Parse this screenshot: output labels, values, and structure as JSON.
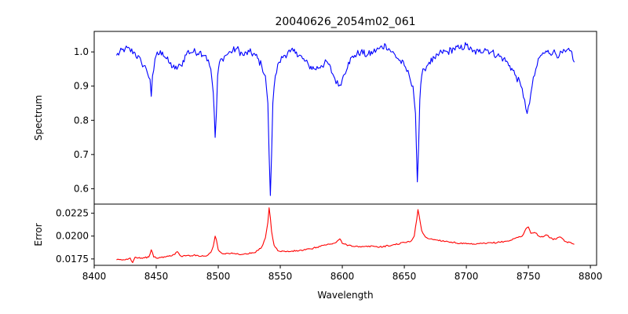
{
  "chart_data": {
    "type": "line",
    "title": "20040626_2054m02_061",
    "xlabel": "Wavelength",
    "xlim": [
      8400,
      8805
    ],
    "x_ticks": [
      "8400",
      "8450",
      "8500",
      "8550",
      "8600",
      "8650",
      "8700",
      "8750",
      "8800"
    ],
    "x_tick_values": [
      8400,
      8450,
      8500,
      8550,
      8600,
      8650,
      8700,
      8750,
      8800
    ],
    "grid": false,
    "panels": [
      {
        "ylabel": "Spectrum",
        "ylim": [
          0.555,
          1.06
        ],
        "y_ticks": [
          "0.6",
          "0.7",
          "0.8",
          "0.9",
          "1.0"
        ],
        "y_tick_values": [
          0.6,
          0.7,
          0.8,
          0.9,
          1.0
        ],
        "series": [
          {
            "color": "#0000ff",
            "x": [
              8418,
              8425,
              8432,
              8438,
              8442,
              8445,
              8446,
              8447,
              8450,
              8455,
              8460,
              8465,
              8470,
              8475,
              8480,
              8485,
              8490,
              8494,
              8496,
              8497.5,
              8498.5,
              8499.5,
              8501,
              8503,
              8506,
              8510,
              8515,
              8520,
              8525,
              8530,
              8535,
              8538,
              8540,
              8541,
              8542,
              8543,
              8544,
              8546,
              8549,
              8553,
              8558,
              8563,
              8568,
              8573,
              8578,
              8583,
              8588,
              8593,
              8597,
              8600,
              8605,
              8610,
              8615,
              8620,
              8625,
              8630,
              8635,
              8640,
              8645,
              8650,
              8654,
              8657,
              8659,
              8660.5,
              8661.5,
              8662.5,
              8664,
              8666,
              8670,
              8675,
              8680,
              8685,
              8690,
              8695,
              8700,
              8705,
              8710,
              8715,
              8720,
              8725,
              8730,
              8735,
              8740,
              8744,
              8747,
              8749,
              8750,
              8751,
              8753,
              8756,
              8760,
              8765,
              8770,
              8775,
              8780,
              8785,
              8787
            ],
            "y": [
              0.99,
              1.01,
              1.0,
              0.97,
              0.95,
              0.92,
              0.87,
              0.93,
              0.99,
              1.0,
              0.97,
              0.95,
              0.96,
              1.0,
              1.0,
              1.0,
              0.99,
              0.95,
              0.88,
              0.75,
              0.82,
              0.93,
              0.97,
              0.98,
              0.99,
              1.0,
              1.01,
              0.99,
              1.0,
              0.99,
              0.96,
              0.93,
              0.85,
              0.7,
              0.58,
              0.7,
              0.85,
              0.93,
              0.97,
              0.99,
              1.0,
              1.0,
              0.98,
              0.96,
              0.95,
              0.96,
              0.97,
              0.93,
              0.9,
              0.92,
              0.97,
              0.99,
              1.0,
              0.99,
              1.0,
              1.01,
              1.02,
              1.0,
              0.98,
              0.96,
              0.93,
              0.9,
              0.82,
              0.62,
              0.72,
              0.86,
              0.93,
              0.95,
              0.97,
              0.98,
              1.0,
              1.0,
              1.01,
              1.01,
              1.02,
              1.0,
              1.0,
              1.01,
              1.0,
              0.99,
              0.98,
              0.96,
              0.93,
              0.9,
              0.86,
              0.82,
              0.84,
              0.85,
              0.9,
              0.95,
              0.99,
              1.0,
              1.0,
              0.99,
              1.0,
              1.0,
              0.97
            ]
          }
        ]
      },
      {
        "ylabel": "Error",
        "ylim": [
          0.0168,
          0.0235
        ],
        "y_ticks": [
          "0.0175",
          "0.0200",
          "0.0225"
        ],
        "y_tick_values": [
          0.0175,
          0.02,
          0.0225
        ],
        "series": [
          {
            "color": "#ff0000",
            "x": [
              8418,
              8425,
              8429,
              8431,
              8433,
              8438,
              8444,
              8446,
              8448,
              8452,
              8460,
              8465,
              8467,
              8470,
              8480,
              8490,
              8494,
              8496,
              8497.5,
              8498.5,
              8500,
              8503,
              8510,
              8520,
              8530,
              8535,
              8538,
              8540,
              8541,
              8542,
              8543,
              8545,
              8548,
              8555,
              8565,
              8575,
              8585,
              8590,
              8595,
              8598,
              8600,
              8605,
              8615,
              8625,
              8630,
              8640,
              8650,
              8655,
              8658,
              8660,
              8661,
              8662,
              8664,
              8667,
              8670,
              8675,
              8685,
              8695,
              8705,
              8715,
              8725,
              8735,
              8740,
              8745,
              8748,
              8750,
              8752,
              8755,
              8760,
              8765,
              8770,
              8775,
              8780,
              8785,
              8787
            ],
            "y": [
              0.0174,
              0.0174,
              0.0176,
              0.0171,
              0.0177,
              0.0176,
              0.0177,
              0.0185,
              0.0177,
              0.0176,
              0.0178,
              0.018,
              0.0183,
              0.0178,
              0.0179,
              0.0178,
              0.0182,
              0.0189,
              0.02,
              0.0196,
              0.0185,
              0.0181,
              0.0181,
              0.018,
              0.0182,
              0.0188,
              0.0198,
              0.0215,
              0.0231,
              0.022,
              0.0205,
              0.019,
              0.0184,
              0.0183,
              0.0184,
              0.0186,
              0.019,
              0.0191,
              0.0193,
              0.0197,
              0.0192,
              0.019,
              0.0188,
              0.0189,
              0.0188,
              0.019,
              0.0193,
              0.0194,
              0.02,
              0.0218,
              0.0229,
              0.0222,
              0.0206,
              0.0199,
              0.0197,
              0.0196,
              0.0194,
              0.0192,
              0.0191,
              0.0192,
              0.0193,
              0.0195,
              0.0198,
              0.02,
              0.0208,
              0.021,
              0.0203,
              0.0204,
              0.0199,
              0.0201,
              0.0196,
              0.0199,
              0.0194,
              0.0192,
              0.0191
            ]
          }
        ]
      }
    ]
  }
}
